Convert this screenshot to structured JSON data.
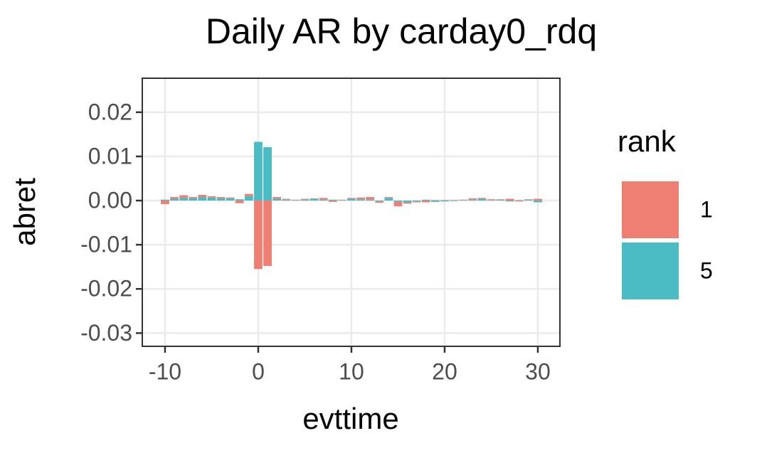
{
  "chart_data": {
    "type": "bar",
    "stacked": true,
    "title": "Daily AR by carday0_rdq",
    "x_label": "evttime",
    "y_label": "abret",
    "legend_title": "rank",
    "x": [
      -10,
      -9,
      -8,
      -7,
      -6,
      -5,
      -4,
      -3,
      -2,
      -1,
      0,
      1,
      2,
      3,
      4,
      5,
      6,
      7,
      8,
      9,
      10,
      11,
      12,
      13,
      14,
      15,
      16,
      17,
      18,
      19,
      20,
      21,
      22,
      23,
      24,
      25,
      26,
      27,
      28,
      29,
      30
    ],
    "series": [
      {
        "name": "1",
        "color": "#f07f73",
        "values": [
          -0.0008,
          0.0004,
          0.0006,
          0.0003,
          0.0005,
          0.0003,
          0.0003,
          0.0002,
          -0.0006,
          0.0005,
          -0.0155,
          -0.0148,
          0.0004,
          0.0002,
          0.0001,
          0.0002,
          0.0001,
          0.0004,
          -0.0003,
          0.0001,
          0.0002,
          0.0004,
          0.0006,
          -0.0003,
          0.0002,
          -0.001,
          -0.0003,
          -0.0002,
          -0.0004,
          0.0001,
          0.0001,
          0.0001,
          0.0001,
          0.0003,
          0.0002,
          0.0002,
          0.0001,
          0.0004,
          -0.0002,
          0.0001,
          0.0004
        ]
      },
      {
        "name": "5",
        "color": "#4bbcc4",
        "values": [
          0.0002,
          0.0004,
          0.0006,
          0.0005,
          0.0008,
          0.0007,
          0.0005,
          0.0005,
          0.0003,
          0.001,
          0.0133,
          0.0121,
          0.0004,
          0.0002,
          0.0001,
          0.0002,
          0.0004,
          0.0002,
          0.0002,
          0.0001,
          0.0004,
          0.0003,
          0.0002,
          -0.0002,
          0.0006,
          -0.0003,
          -0.0004,
          -0.0002,
          0.0002,
          -0.0003,
          -0.0002,
          -0.0001,
          0.0001,
          0.0002,
          0.0004,
          0.0001,
          0.0002,
          -0.0002,
          0.0001,
          0.0002,
          -0.0004
        ]
      }
    ],
    "xlim": [
      -12.44,
      32.37
    ],
    "xticks": [
      -10,
      0,
      10,
      20,
      30
    ],
    "ylim": [
      -0.033,
      0.0277
    ],
    "yticks": [
      0.02,
      0.01,
      {
        "value": 0,
        "label": "0.00"
      },
      -0.01,
      -0.02,
      -0.03
    ],
    "grid": true
  }
}
